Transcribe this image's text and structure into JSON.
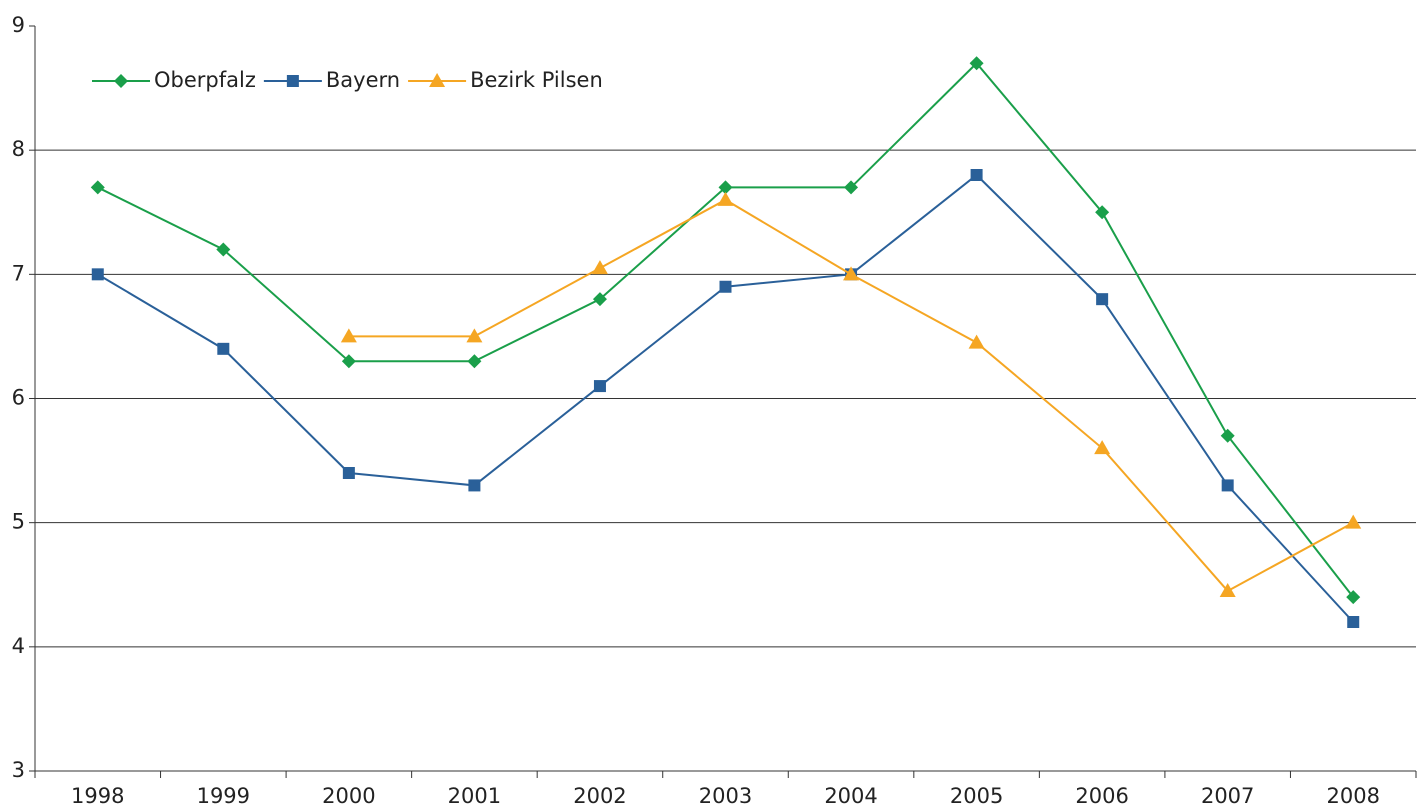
{
  "chart_data": {
    "type": "line",
    "categories": [
      "1998",
      "1999",
      "2000",
      "2001",
      "2002",
      "2003",
      "2004",
      "2005",
      "2006",
      "2007",
      "2008"
    ],
    "series": [
      {
        "name": "Oberpfalz",
        "color": "#1a9f4a",
        "marker": "diamond",
        "values": [
          7.7,
          7.2,
          6.3,
          6.3,
          6.8,
          7.7,
          7.7,
          8.7,
          7.5,
          5.7,
          4.4
        ]
      },
      {
        "name": "Bayern",
        "color": "#2a6099",
        "marker": "square",
        "values": [
          7.0,
          6.4,
          5.4,
          5.3,
          6.1,
          6.9,
          7.0,
          7.8,
          6.8,
          5.3,
          4.2
        ]
      },
      {
        "name": "Bezirk Pilsen",
        "color": "#f5a623",
        "marker": "triangle",
        "values": [
          null,
          null,
          6.5,
          6.5,
          7.05,
          7.6,
          7.0,
          6.45,
          5.6,
          4.45,
          5.0
        ]
      }
    ],
    "ylim": [
      3,
      9
    ],
    "yticks": [
      3,
      4,
      5,
      6,
      7,
      8,
      9
    ],
    "grid": true,
    "legend": "top-left"
  }
}
